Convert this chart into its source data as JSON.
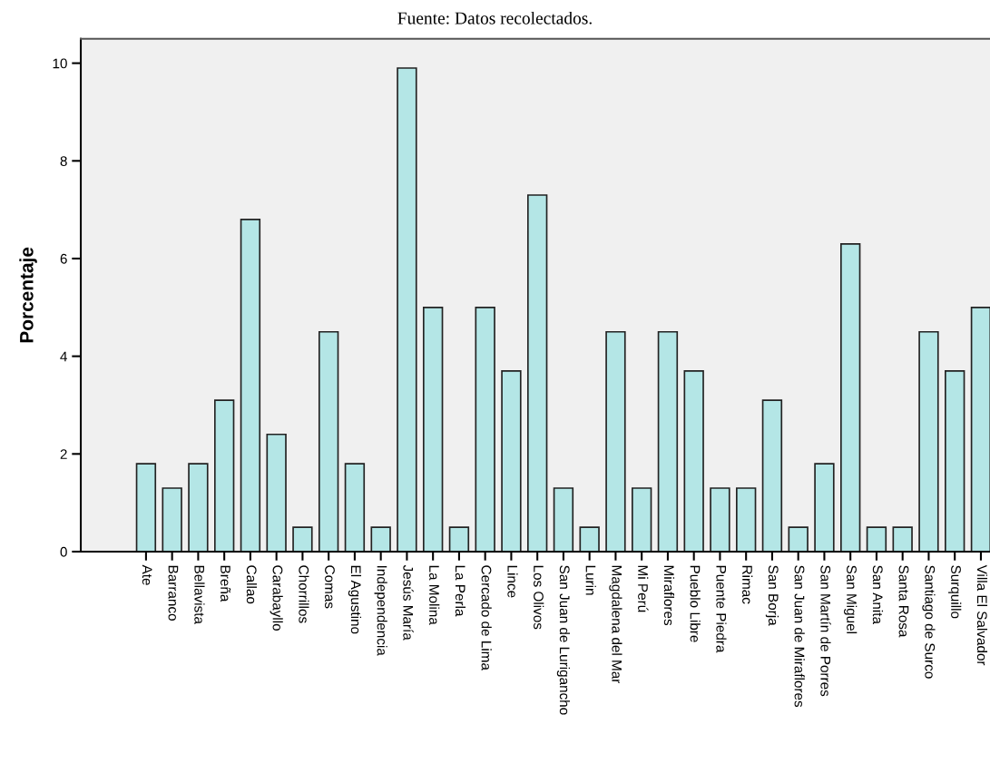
{
  "chart_data": {
    "type": "bar",
    "title": "Fuente: Datos recolectados.",
    "ylabel": "Porcentaje",
    "categories": [
      "Ate",
      "Barranco",
      "Bellavista",
      "Breña",
      "Callao",
      "Carabayllo",
      "Chorrillos",
      "Comas",
      "El Agustino",
      "Independencia",
      "Jesús María",
      "La Molina",
      "La Perla",
      "Cercado de Lima",
      "Lince",
      "Los Olivos",
      "San Juan de Lurigancho",
      "Lurin",
      "Magdalena del Mar",
      "Mi Perú",
      "Miraflores",
      "Pueblo Libre",
      "Puente Piedra",
      "Rimac",
      "San Borja",
      "San Juan de Miraflores",
      "San Martín de Porres",
      "San Miguel",
      "San Anita",
      "Santa Rosa",
      "Santiago de Surco",
      "Surquillo",
      "Villa El Salvador"
    ],
    "values": [
      1.8,
      1.3,
      1.8,
      3.1,
      6.8,
      2.4,
      0.5,
      4.5,
      1.8,
      0.5,
      9.9,
      5.0,
      0.5,
      5.0,
      3.7,
      7.3,
      1.3,
      0.5,
      4.5,
      1.3,
      4.5,
      3.7,
      1.3,
      1.3,
      3.1,
      0.5,
      1.8,
      6.3,
      0.5,
      0.5,
      4.5,
      3.7,
      5.0
    ],
    "color": "#b4e6e6",
    "ylim": [
      0,
      10.5
    ],
    "yticks": [
      0,
      2,
      4,
      6,
      8,
      10
    ],
    "grid": false,
    "legend": false
  }
}
